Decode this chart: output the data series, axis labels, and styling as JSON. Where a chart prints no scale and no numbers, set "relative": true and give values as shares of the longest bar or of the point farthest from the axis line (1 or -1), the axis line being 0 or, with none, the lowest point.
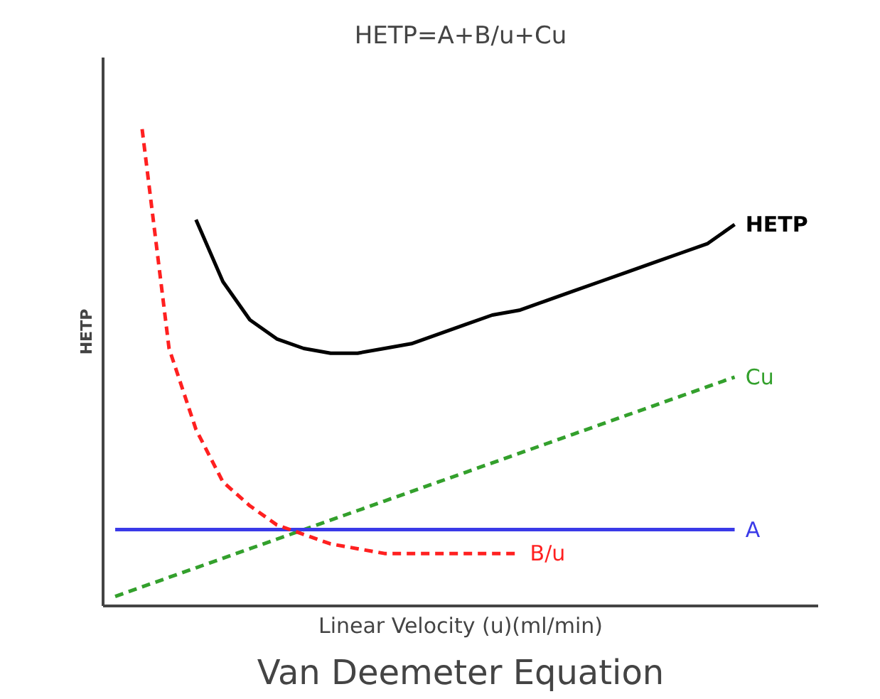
{
  "chart_data": {
    "type": "line",
    "title": "HETP=A+B/u+Cu",
    "xlabel": "Linear Velocity (u)(ml/min)",
    "ylabel": "HETP",
    "relative": true,
    "categories": [
      null,
      null,
      null,
      null,
      null,
      null,
      null,
      null,
      null,
      null,
      null,
      null,
      null,
      null,
      null,
      null,
      null,
      null,
      null,
      null,
      null,
      null,
      null,
      null
    ],
    "series": [
      {
        "name": "HETP",
        "color": "#000000",
        "line_style": "solid",
        "values": [
          null,
          null,
          null,
          0.81,
          0.68,
          0.6,
          0.56,
          0.54,
          0.53,
          0.53,
          0.54,
          0.55,
          0.57,
          0.59,
          0.61,
          0.62,
          0.64,
          0.66,
          0.68,
          0.7,
          0.72,
          0.74,
          0.76,
          0.8
        ]
      },
      {
        "name": "Cu",
        "color": "#33a02c",
        "line_style": "dashed",
        "values": [
          0.02,
          0.04,
          0.06,
          0.08,
          0.1,
          0.12,
          0.14,
          0.16,
          0.18,
          0.2,
          0.22,
          0.24,
          0.26,
          0.28,
          0.3,
          0.32,
          0.34,
          0.36,
          0.38,
          0.4,
          0.42,
          0.44,
          0.46,
          0.48
        ]
      },
      {
        "name": "A",
        "color": "#3a3ae8",
        "line_style": "solid",
        "values": [
          0.16,
          0.16,
          0.16,
          0.16,
          0.16,
          0.16,
          0.16,
          0.16,
          0.16,
          0.16,
          0.16,
          0.16,
          0.16,
          0.16,
          0.16,
          0.16,
          0.16,
          0.16,
          0.16,
          0.16,
          0.16,
          0.16,
          0.16,
          0.16
        ]
      },
      {
        "name": "B/u",
        "color": "#ff2020",
        "line_style": "dashed",
        "values": [
          null,
          1.0,
          0.54,
          0.37,
          0.26,
          0.21,
          0.17,
          0.15,
          0.13,
          0.12,
          0.11,
          0.11,
          0.11,
          0.11,
          0.11,
          0.11,
          null,
          null,
          null,
          null,
          null,
          null,
          null,
          null
        ]
      }
    ],
    "annotations": [
      "Van Deemeter Equation"
    ],
    "marker": "none"
  }
}
